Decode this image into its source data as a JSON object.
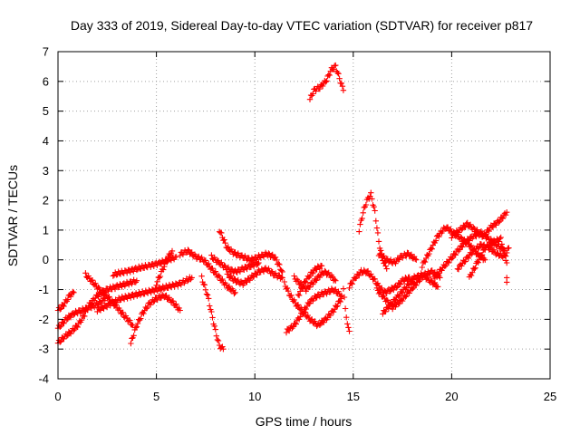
{
  "chart_data": {
    "type": "scatter",
    "title": "Day 333 of 2019, Sidereal Day-to-day VTEC variation (SDTVAR) for receiver p817",
    "xlabel": "GPS time / hours",
    "ylabel": "SDTVAR / TECUs",
    "xlim": [
      0,
      25
    ],
    "ylim": [
      -4,
      7
    ],
    "xticks": [
      "0",
      "5",
      "10",
      "15",
      "20",
      "25"
    ],
    "yticks": [
      "-4",
      "-3",
      "-2",
      "-1",
      "0",
      "1",
      "2",
      "3",
      "4",
      "5",
      "6",
      "7"
    ],
    "grid": true,
    "marker": "plus",
    "color": "#ff0000",
    "series": [
      {
        "name": "satellite tracks",
        "tracks": [
          [
            [
              0.0,
              -2.8
            ],
            [
              0.3,
              -2.6
            ],
            [
              0.7,
              -2.4
            ],
            [
              1.0,
              -2.2
            ],
            [
              1.3,
              -1.9
            ],
            [
              1.6,
              -1.5
            ],
            [
              2.0,
              -1.2
            ],
            [
              2.5,
              -1.0
            ],
            [
              3.0,
              -0.9
            ],
            [
              3.5,
              -0.8
            ],
            [
              4.0,
              -0.7
            ]
          ],
          [
            [
              0.0,
              -1.7
            ],
            [
              0.3,
              -1.5
            ],
            [
              0.6,
              -1.2
            ],
            [
              0.8,
              -1.1
            ]
          ],
          [
            [
              0.0,
              -2.3
            ],
            [
              0.4,
              -2.0
            ],
            [
              0.8,
              -1.8
            ],
            [
              1.2,
              -1.7
            ],
            [
              1.6,
              -1.6
            ],
            [
              2.0,
              -1.5
            ],
            [
              2.4,
              -1.3
            ]
          ],
          [
            [
              1.4,
              -0.5
            ],
            [
              1.7,
              -0.7
            ],
            [
              2.1,
              -1.0
            ],
            [
              2.6,
              -1.3
            ],
            [
              3.0,
              -1.6
            ],
            [
              3.4,
              -1.9
            ],
            [
              3.8,
              -2.2
            ]
          ],
          [
            [
              2.0,
              -1.7
            ],
            [
              2.6,
              -1.5
            ],
            [
              3.2,
              -1.3
            ],
            [
              3.8,
              -1.2
            ],
            [
              4.4,
              -1.1
            ],
            [
              5.0,
              -1.0
            ],
            [
              5.6,
              -0.9
            ],
            [
              6.2,
              -0.8
            ],
            [
              6.8,
              -0.6
            ]
          ],
          [
            [
              2.8,
              -0.5
            ],
            [
              3.4,
              -0.4
            ],
            [
              4.0,
              -0.3
            ],
            [
              4.6,
              -0.2
            ],
            [
              5.2,
              -0.1
            ],
            [
              5.6,
              0.0
            ],
            [
              6.0,
              0.1
            ]
          ],
          [
            [
              3.7,
              -2.8
            ],
            [
              4.0,
              -2.2
            ],
            [
              4.3,
              -1.8
            ],
            [
              4.6,
              -1.5
            ],
            [
              5.0,
              -1.3
            ],
            [
              5.4,
              -1.2
            ],
            [
              5.8,
              -1.4
            ],
            [
              6.2,
              -1.7
            ]
          ],
          [
            [
              5.0,
              -0.8
            ],
            [
              5.2,
              -0.5
            ],
            [
              5.4,
              -0.2
            ],
            [
              5.6,
              0.1
            ],
            [
              5.8,
              0.3
            ]
          ],
          [
            [
              6.2,
              0.2
            ],
            [
              6.6,
              0.3
            ],
            [
              7.0,
              0.1
            ],
            [
              7.4,
              0.0
            ],
            [
              7.8,
              -0.3
            ],
            [
              8.2,
              -0.6
            ],
            [
              8.6,
              -0.9
            ],
            [
              9.0,
              -1.1
            ]
          ],
          [
            [
              7.3,
              -0.6
            ],
            [
              7.6,
              -1.2
            ],
            [
              7.8,
              -1.8
            ],
            [
              8.0,
              -2.4
            ],
            [
              8.2,
              -2.9
            ],
            [
              8.4,
              -3.0
            ]
          ],
          [
            [
              8.2,
              1.0
            ],
            [
              8.6,
              0.4
            ],
            [
              9.0,
              0.2
            ],
            [
              9.4,
              0.1
            ],
            [
              9.8,
              0.0
            ],
            [
              10.2,
              0.1
            ],
            [
              10.6,
              0.2
            ],
            [
              11.0,
              0.1
            ],
            [
              11.4,
              -0.4
            ]
          ],
          [
            [
              8.6,
              -0.5
            ],
            [
              9.0,
              -0.7
            ],
            [
              9.4,
              -0.8
            ],
            [
              9.8,
              -0.6
            ],
            [
              10.2,
              -0.4
            ],
            [
              10.6,
              -0.3
            ],
            [
              11.0,
              -0.5
            ],
            [
              11.4,
              -0.6
            ]
          ],
          [
            [
              7.8,
              0.1
            ],
            [
              8.2,
              -0.1
            ],
            [
              8.6,
              -0.3
            ],
            [
              9.0,
              -0.4
            ],
            [
              9.4,
              -0.3
            ],
            [
              9.8,
              -0.2
            ],
            [
              10.2,
              -0.1
            ]
          ],
          [
            [
              11.5,
              -0.8
            ],
            [
              11.8,
              -1.2
            ],
            [
              12.1,
              -1.5
            ],
            [
              12.4,
              -1.7
            ],
            [
              12.8,
              -2.0
            ],
            [
              13.2,
              -2.2
            ],
            [
              13.6,
              -2.0
            ],
            [
              14.0,
              -1.7
            ],
            [
              14.4,
              -1.3
            ]
          ],
          [
            [
              11.6,
              -2.4
            ],
            [
              12.0,
              -2.2
            ],
            [
              12.4,
              -1.8
            ],
            [
              12.8,
              -1.4
            ],
            [
              13.2,
              -1.2
            ],
            [
              13.6,
              -1.1
            ],
            [
              14.0,
              -1.0
            ],
            [
              14.4,
              -1.2
            ]
          ],
          [
            [
              12.0,
              -0.6
            ],
            [
              12.3,
              -0.8
            ],
            [
              12.6,
              -1.0
            ],
            [
              12.9,
              -0.8
            ],
            [
              13.2,
              -0.6
            ],
            [
              13.5,
              -0.4
            ],
            [
              13.8,
              -0.5
            ],
            [
              14.1,
              -0.7
            ]
          ],
          [
            [
              12.2,
              -1.2
            ],
            [
              12.5,
              -0.8
            ],
            [
              12.8,
              -0.5
            ],
            [
              13.1,
              -0.3
            ],
            [
              13.4,
              -0.2
            ]
          ],
          [
            [
              12.8,
              5.4
            ],
            [
              13.0,
              5.7
            ],
            [
              13.3,
              5.8
            ],
            [
              13.6,
              6.0
            ],
            [
              13.9,
              6.4
            ],
            [
              14.1,
              6.5
            ],
            [
              14.3,
              6.1
            ],
            [
              14.5,
              5.7
            ]
          ],
          [
            [
              14.5,
              -1.0
            ],
            [
              14.6,
              -1.6
            ],
            [
              14.7,
              -2.2
            ],
            [
              14.8,
              -2.4
            ]
          ],
          [
            [
              14.8,
              -0.9
            ],
            [
              15.1,
              -0.6
            ],
            [
              15.4,
              -0.4
            ],
            [
              15.7,
              -0.4
            ],
            [
              16.0,
              -0.6
            ],
            [
              16.3,
              -0.9
            ],
            [
              16.6,
              -1.1
            ],
            [
              16.9,
              -1.0
            ],
            [
              17.2,
              -0.9
            ],
            [
              17.5,
              -0.7
            ],
            [
              17.8,
              -0.6
            ],
            [
              18.1,
              -0.8
            ]
          ],
          [
            [
              15.3,
              1.0
            ],
            [
              15.5,
              1.6
            ],
            [
              15.7,
              2.0
            ],
            [
              15.9,
              2.2
            ],
            [
              16.1,
              1.6
            ],
            [
              16.3,
              0.6
            ],
            [
              16.5,
              0.0
            ],
            [
              16.7,
              -0.3
            ]
          ],
          [
            [
              16.2,
              -1.0
            ],
            [
              16.6,
              -1.3
            ],
            [
              17.0,
              -1.6
            ],
            [
              17.4,
              -1.4
            ],
            [
              17.8,
              -1.1
            ],
            [
              18.2,
              -0.8
            ],
            [
              18.6,
              -0.5
            ],
            [
              19.0,
              -0.4
            ],
            [
              19.4,
              -0.6
            ]
          ],
          [
            [
              16.5,
              -1.8
            ],
            [
              16.9,
              -1.5
            ],
            [
              17.3,
              -1.2
            ],
            [
              17.7,
              -0.9
            ],
            [
              18.1,
              -0.6
            ],
            [
              18.5,
              -0.5
            ],
            [
              18.9,
              -0.7
            ],
            [
              19.3,
              -0.9
            ]
          ],
          [
            [
              16.3,
              0.2
            ],
            [
              16.7,
              0.0
            ],
            [
              17.1,
              -0.1
            ],
            [
              17.4,
              0.1
            ],
            [
              17.8,
              0.2
            ],
            [
              18.2,
              0.0
            ]
          ],
          [
            [
              18.5,
              -0.2
            ],
            [
              18.9,
              0.3
            ],
            [
              19.3,
              0.8
            ],
            [
              19.7,
              1.1
            ],
            [
              20.1,
              0.9
            ],
            [
              20.5,
              0.7
            ],
            [
              20.9,
              0.5
            ],
            [
              21.3,
              0.2
            ],
            [
              21.7,
              0.0
            ]
          ],
          [
            [
              19.1,
              -0.6
            ],
            [
              19.5,
              -0.3
            ],
            [
              19.9,
              0.0
            ],
            [
              20.3,
              0.3
            ],
            [
              20.7,
              0.6
            ],
            [
              21.1,
              0.8
            ],
            [
              21.5,
              0.9
            ],
            [
              21.9,
              0.7
            ],
            [
              22.3,
              0.5
            ],
            [
              22.7,
              0.3
            ]
          ],
          [
            [
              20.0,
              0.8
            ],
            [
              20.4,
              1.0
            ],
            [
              20.8,
              1.2
            ],
            [
              21.2,
              1.0
            ],
            [
              21.6,
              0.8
            ],
            [
              22.0,
              1.1
            ],
            [
              22.4,
              1.3
            ],
            [
              22.8,
              1.6
            ]
          ],
          [
            [
              20.3,
              -0.3
            ],
            [
              20.7,
              0.0
            ],
            [
              21.1,
              0.3
            ],
            [
              21.5,
              0.5
            ],
            [
              21.9,
              0.4
            ],
            [
              22.3,
              0.2
            ],
            [
              22.7,
              0.1
            ],
            [
              22.9,
              0.4
            ]
          ],
          [
            [
              20.9,
              -0.6
            ],
            [
              21.3,
              -0.1
            ],
            [
              21.7,
              0.4
            ],
            [
              22.1,
              0.6
            ],
            [
              22.5,
              0.7
            ],
            [
              22.8,
              -0.1
            ]
          ],
          [
            [
              22.8,
              -0.8
            ],
            [
              22.8,
              -0.6
            ]
          ]
        ]
      }
    ]
  }
}
